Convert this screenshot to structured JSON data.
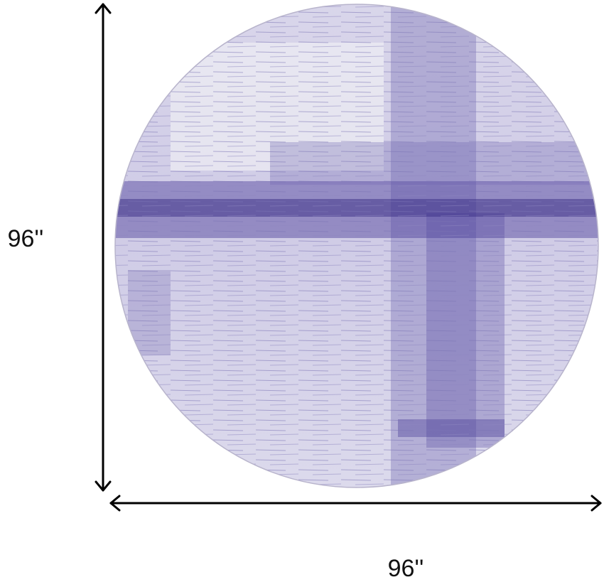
{
  "dimensions": {
    "height_label": "96''",
    "width_label": "96''"
  }
}
